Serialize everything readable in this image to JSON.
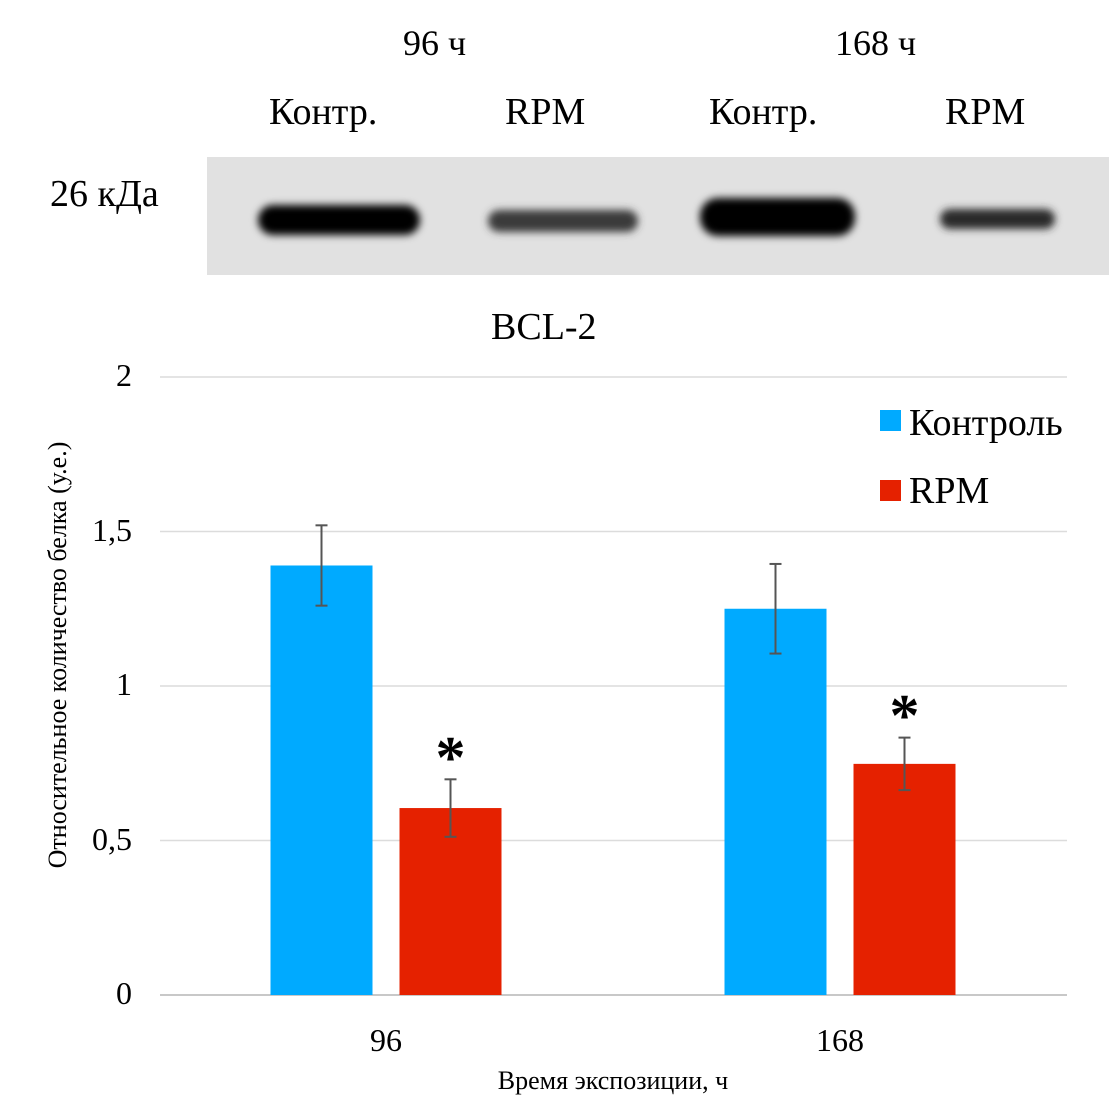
{
  "blot": {
    "time_labels": [
      "96 ч",
      "168 ч"
    ],
    "lane_labels": [
      "Контр.",
      "RPM",
      "Контр.",
      "RPM"
    ],
    "marker_label": "26 кДа",
    "protein_label": "BCL-2"
  },
  "chart_data": {
    "type": "bar",
    "title": "",
    "xlabel": "Время экспозиции, ч",
    "ylabel": "Относительное количество белка (у.е.)",
    "categories": [
      "96",
      "168"
    ],
    "ylim": [
      0,
      2
    ],
    "yticks": [
      0,
      0.5,
      1,
      1.5,
      2
    ],
    "ytick_labels": [
      "0",
      "0,5",
      "1",
      "1,5",
      "2"
    ],
    "grid": true,
    "legend_position": "top-right",
    "series": [
      {
        "name": "Контроль",
        "color": "#00aaff",
        "values": [
          1.39,
          1.25
        ],
        "errors": [
          0.13,
          0.145
        ],
        "significance": [
          "",
          ""
        ]
      },
      {
        "name": "RPM",
        "color": "#e52100",
        "values": [
          0.605,
          0.748
        ],
        "errors": [
          0.093,
          0.085
        ],
        "significance": [
          "*",
          "*"
        ]
      }
    ]
  }
}
